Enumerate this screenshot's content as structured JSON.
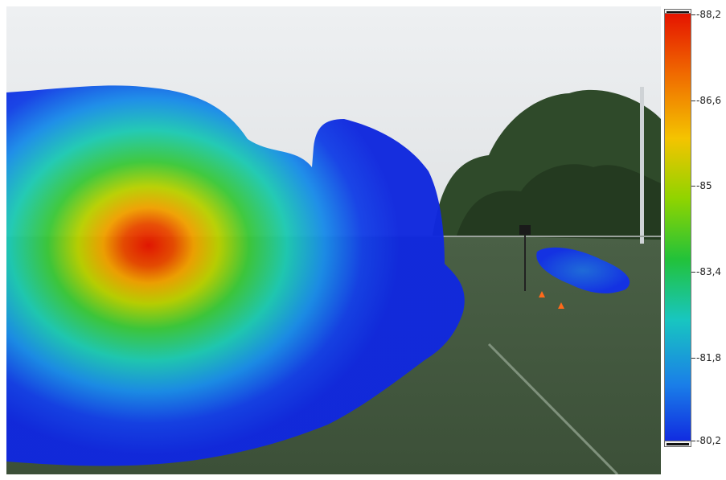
{
  "colorbar": {
    "ticks": [
      "-88,2",
      "-86,6",
      "-85",
      "-83,4",
      "-81,8",
      "-80,2"
    ],
    "gradient_colors": [
      "#e51400",
      "#f06a00",
      "#f4c400",
      "#8fd400",
      "#22c23a",
      "#18c6c0",
      "#1a7fe8",
      "#1026e0"
    ]
  }
}
